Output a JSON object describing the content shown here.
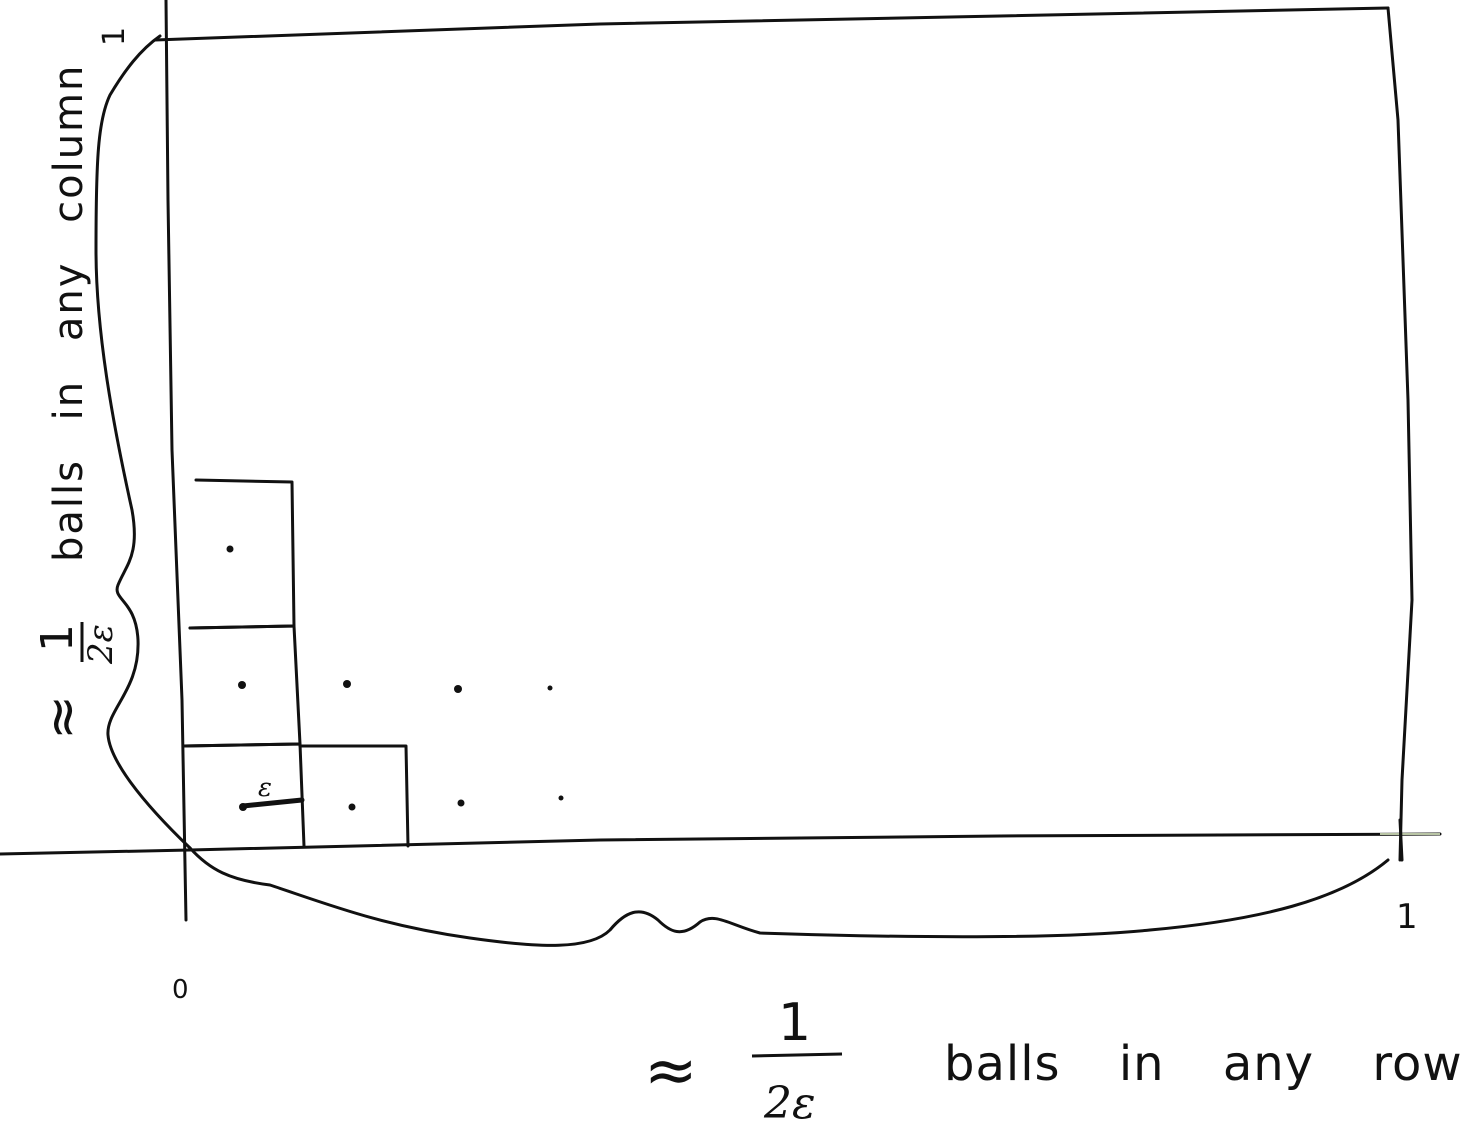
{
  "axis_labels": {
    "origin": "0",
    "x_end": "1",
    "y_end": "1"
  },
  "epsilon_label": "ε",
  "column_brace_label": {
    "approx": "≈",
    "numerator": "1",
    "denominator": "2ε",
    "text": "balls in any column"
  },
  "row_brace_label": {
    "approx": "≈",
    "numerator": "1",
    "denominator": "2ε",
    "text": "balls in any row"
  },
  "colors": {
    "ink": "#111111",
    "x_axis_tint": "#b8c4a4",
    "background": "#ffffff"
  }
}
